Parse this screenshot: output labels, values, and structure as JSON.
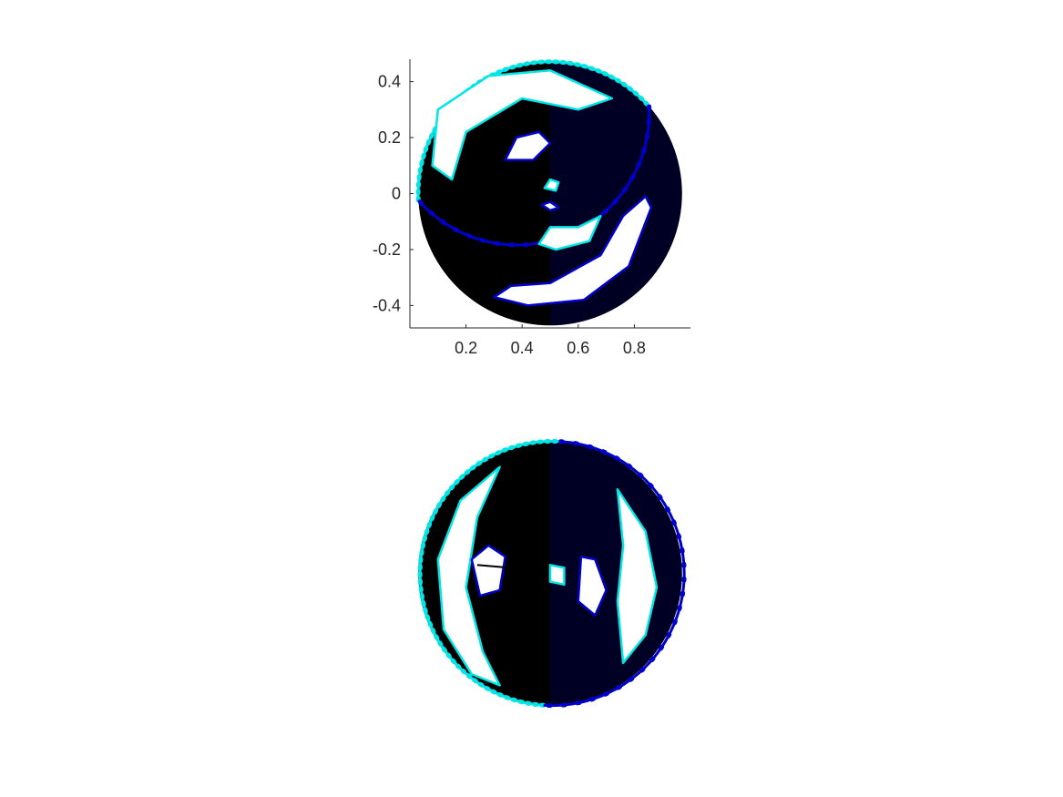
{
  "figure": {
    "background": "#ffffff"
  },
  "chart_data": [
    {
      "type": "scatter",
      "title": "",
      "xlabel": "",
      "ylabel": "",
      "xlim": [
        0,
        1
      ],
      "ylim": [
        -0.48,
        0.48
      ],
      "x_ticks": [
        0.2,
        0.4,
        0.6,
        0.8
      ],
      "x_tick_labels": [
        "0.2",
        "0.4",
        "0.6",
        "0.8"
      ],
      "y_ticks": [
        0.4,
        0.2,
        0,
        -0.2,
        -0.4
      ],
      "y_tick_labels": [
        "0.4",
        "0.2",
        "0",
        "-0.2",
        "-0.4"
      ],
      "axes_visible": true,
      "grid": false,
      "colors": {
        "boundary_a": "#00e5e5",
        "boundary_b": "#0000cc",
        "mesh": "#000000"
      },
      "disk": {
        "center": [
          0.5,
          0
        ],
        "radius": 0.47
      },
      "holes": [
        {
          "name": "upper-outer-arc-hole",
          "points": [
            [
              0.08,
              0.1
            ],
            [
              0.1,
              0.3
            ],
            [
              0.28,
              0.42
            ],
            [
              0.5,
              0.44
            ],
            [
              0.72,
              0.34
            ],
            [
              0.6,
              0.3
            ],
            [
              0.4,
              0.34
            ],
            [
              0.2,
              0.22
            ],
            [
              0.15,
              0.05
            ]
          ]
        },
        {
          "name": "upper-inner-hole",
          "points": [
            [
              0.34,
              0.12
            ],
            [
              0.38,
              0.2
            ],
            [
              0.46,
              0.22
            ],
            [
              0.5,
              0.18
            ],
            [
              0.44,
              0.12
            ]
          ]
        },
        {
          "name": "center-hole-top",
          "points": [
            [
              0.48,
              0.02
            ],
            [
              0.5,
              0.05
            ],
            [
              0.53,
              0.04
            ],
            [
              0.52,
              0.01
            ]
          ]
        },
        {
          "name": "center-hole-bottom",
          "points": [
            [
              0.47,
              -0.04
            ],
            [
              0.5,
              -0.03
            ],
            [
              0.53,
              -0.05
            ],
            [
              0.5,
              -0.06
            ]
          ]
        },
        {
          "name": "right-middle-hole",
          "points": [
            [
              0.46,
              -0.18
            ],
            [
              0.52,
              -0.2
            ],
            [
              0.64,
              -0.17
            ],
            [
              0.68,
              -0.08
            ],
            [
              0.6,
              -0.12
            ],
            [
              0.5,
              -0.12
            ]
          ]
        },
        {
          "name": "lower-outer-arc-hole",
          "points": [
            [
              0.3,
              -0.37
            ],
            [
              0.42,
              -0.4
            ],
            [
              0.62,
              -0.38
            ],
            [
              0.78,
              -0.26
            ],
            [
              0.86,
              -0.05
            ],
            [
              0.84,
              -0.01
            ],
            [
              0.76,
              -0.08
            ],
            [
              0.68,
              -0.22
            ],
            [
              0.5,
              -0.32
            ],
            [
              0.36,
              -0.33
            ]
          ]
        }
      ]
    },
    {
      "type": "scatter",
      "title": "",
      "xlabel": "",
      "ylabel": "",
      "xlim": [
        0,
        1
      ],
      "ylim": [
        -0.48,
        0.48
      ],
      "axes_visible": false,
      "grid": false,
      "colors": {
        "boundary_a": "#00e5e5",
        "boundary_b": "#0000cc",
        "mesh": "#000000"
      },
      "disk": {
        "center": [
          0.5,
          0
        ],
        "radius": 0.47
      },
      "holes": [
        {
          "name": "left-arc-hole",
          "points": [
            [
              0.32,
              0.38
            ],
            [
              0.18,
              0.26
            ],
            [
              0.1,
              0.05
            ],
            [
              0.12,
              -0.2
            ],
            [
              0.22,
              -0.36
            ],
            [
              0.32,
              -0.4
            ],
            [
              0.26,
              -0.28
            ],
            [
              0.2,
              -0.05
            ],
            [
              0.24,
              0.2
            ]
          ]
        },
        {
          "name": "left-inner-hole",
          "points": [
            [
              0.22,
              0.05
            ],
            [
              0.28,
              0.1
            ],
            [
              0.34,
              0.06
            ],
            [
              0.32,
              -0.06
            ],
            [
              0.25,
              -0.08
            ]
          ]
        },
        {
          "name": "center-small-hole",
          "points": [
            [
              0.5,
              0.03
            ],
            [
              0.55,
              0.02
            ],
            [
              0.55,
              -0.04
            ],
            [
              0.5,
              -0.03
            ]
          ]
        },
        {
          "name": "right-inner-hole",
          "points": [
            [
              0.61,
              0.06
            ],
            [
              0.66,
              0.05
            ],
            [
              0.7,
              -0.06
            ],
            [
              0.66,
              -0.15
            ],
            [
              0.6,
              -0.1
            ]
          ]
        },
        {
          "name": "right-arc-hole",
          "points": [
            [
              0.74,
              0.3
            ],
            [
              0.84,
              0.15
            ],
            [
              0.88,
              -0.05
            ],
            [
              0.84,
              -0.22
            ],
            [
              0.76,
              -0.32
            ],
            [
              0.74,
              -0.1
            ],
            [
              0.76,
              0.1
            ]
          ]
        }
      ],
      "annotations": [
        {
          "name": "black-line-segment",
          "x": [
            0.24,
            0.47
          ],
          "y": [
            0.03,
            0.01
          ]
        }
      ]
    }
  ]
}
